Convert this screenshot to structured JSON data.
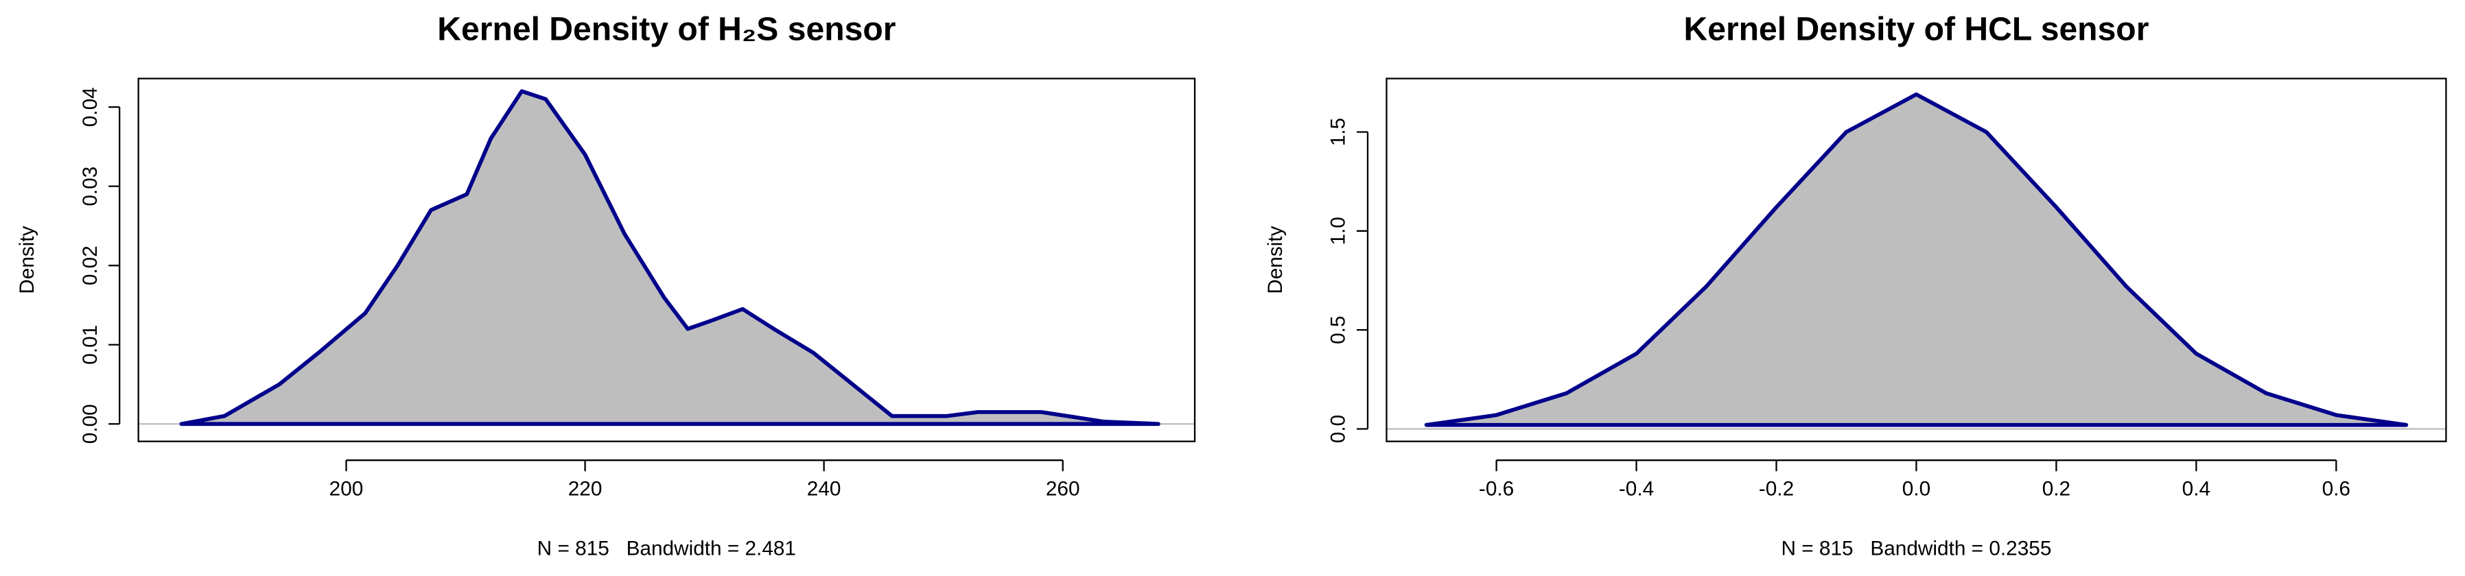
{
  "chart_data": [
    {
      "type": "area",
      "title": "Kernel Density of H₂S sensor",
      "xlabel": "N = 815   Bandwidth = 2.481",
      "ylabel": "Density",
      "x": [
        186.2,
        189.8,
        194.4,
        197.7,
        201.6,
        204.3,
        207.1,
        210.1,
        212.1,
        214.7,
        216.7,
        220,
        223.3,
        226.6,
        228.6,
        230.5,
        233.2,
        235.8,
        239.1,
        242.4,
        245.7,
        250.3,
        252.9,
        258.2,
        263.4,
        268
      ],
      "series": [
        {
          "color": "#00008b",
          "fill": "#bebebe",
          "values": [
            0,
            0.001,
            0.005,
            0.009,
            0.014,
            0.02,
            0.027,
            0.029,
            0.036,
            0.042,
            0.041,
            0.034,
            0.024,
            0.016,
            0.012,
            0.013,
            0.0145,
            0.012,
            0.009,
            0.005,
            0.001,
            0.001,
            0.0015,
            0.0015,
            0.0003,
            0
          ]
        }
      ],
      "xlim": [
        182.6,
        271.05
      ],
      "xticks": [
        200,
        220,
        240,
        260
      ],
      "ylim": [
        -0.0022,
        0.0436
      ],
      "yticks": [
        {
          "value": 0,
          "label": "0.00"
        },
        0.01,
        0.02,
        0.03,
        0.04
      ]
    },
    {
      "type": "area",
      "title": "Kernel Density of HCL sensor",
      "xlabel": "N = 815   Bandwidth = 0.2355",
      "ylabel": "Density",
      "x": [
        -0.7,
        -0.6,
        -0.5,
        -0.4,
        -0.3,
        -0.2,
        -0.1,
        0,
        0.1,
        0.2,
        0.3,
        0.4,
        0.5,
        0.6,
        0.7
      ],
      "series": [
        {
          "color": "#00008b",
          "fill": "#bebebe",
          "values": [
            0.02,
            0.07,
            0.18,
            0.38,
            0.72,
            1.12,
            1.5,
            1.69,
            1.5,
            1.12,
            0.72,
            0.38,
            0.18,
            0.07,
            0.02
          ]
        }
      ],
      "xlim": [
        -0.757,
        0.757
      ],
      "xticks": [
        -0.6,
        -0.4,
        -0.2,
        {
          "value": 0,
          "label": "0.0"
        },
        0.2,
        0.4,
        0.6
      ],
      "ylim": [
        -0.063,
        1.77
      ],
      "yticks": [
        {
          "value": 0,
          "label": "0.0"
        },
        0.5,
        {
          "value": 1,
          "label": "1.0"
        },
        1.5
      ]
    }
  ]
}
